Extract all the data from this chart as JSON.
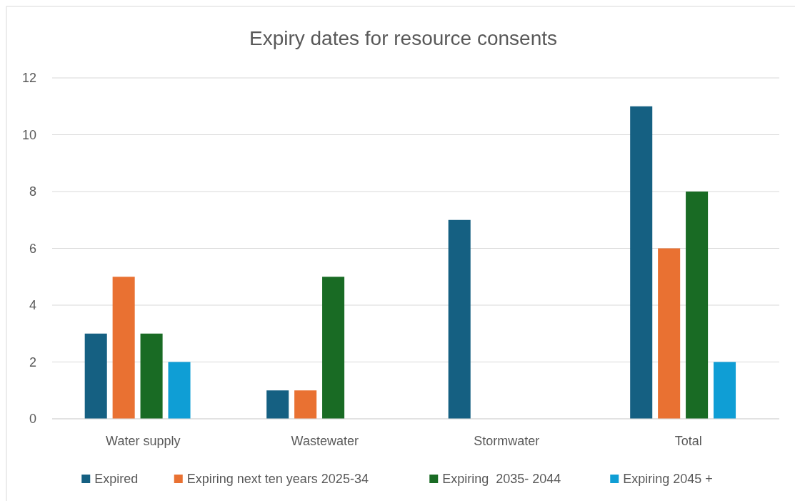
{
  "chart_data": {
    "type": "bar",
    "title": "Expiry dates for resource consents",
    "categories": [
      "Water supply",
      "Wastewater",
      "Stormwater",
      "Total"
    ],
    "series": [
      {
        "name": "Expired",
        "color": "#156082",
        "values": [
          3,
          1,
          7,
          11
        ]
      },
      {
        "name": "Expiring next ten years 2025-34",
        "color": "#e97132",
        "values": [
          5,
          1,
          0,
          6
        ]
      },
      {
        "name": "Expiring  2035- 2044",
        "color": "#196b24",
        "values": [
          3,
          5,
          0,
          8
        ]
      },
      {
        "name": "Expiring 2045 +",
        "color": "#0f9ed5",
        "values": [
          2,
          0,
          0,
          2
        ]
      }
    ],
    "ylim": [
      0,
      12
    ],
    "yticks": [
      0,
      2,
      4,
      6,
      8,
      10,
      12
    ],
    "grid": "y",
    "legend": "bottom"
  }
}
